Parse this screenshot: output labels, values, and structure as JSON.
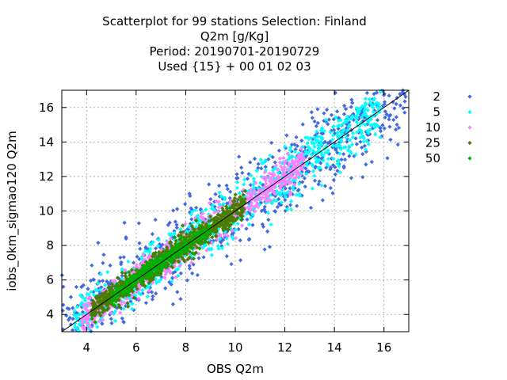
{
  "chart_data": {
    "type": "scatter",
    "title_lines": [
      "Scatterplot for   99 stations Selection: Finland",
      "Q2m [g/Kg]",
      "Period: 20190701-20190729",
      "Used {15} + 00 01 02 03"
    ],
    "xlabel": "OBS Q2m",
    "ylabel": "iobs_0km_sigmao120 Q2m",
    "xlim": [
      3,
      17
    ],
    "ylim": [
      3,
      17
    ],
    "xticks": [
      4,
      6,
      8,
      10,
      12,
      14,
      16
    ],
    "yticks": [
      4,
      6,
      8,
      10,
      12,
      14,
      16
    ],
    "grid": true,
    "diagonal": true,
    "legend_position": "right",
    "series": [
      {
        "name": "2",
        "color": "#4169e1",
        "x_range": [
          3.0,
          16.9
        ],
        "spread": 1.5,
        "density": 0.55
      },
      {
        "name": "5",
        "color": "#00ffff",
        "x_range": [
          3.5,
          15.9
        ],
        "spread": 0.95,
        "density": 0.6
      },
      {
        "name": "10",
        "color": "#ff80ff",
        "x_range": [
          3.8,
          12.8
        ],
        "spread": 0.6,
        "density": 0.55
      },
      {
        "name": "25",
        "color": "#4b7d00",
        "x_range": [
          4.2,
          10.4
        ],
        "spread": 0.45,
        "density": 0.6
      },
      {
        "name": "50",
        "color": "#00b000",
        "x_range": [
          5.0,
          9.0
        ],
        "spread": 0.3,
        "density": 0.25
      }
    ]
  }
}
